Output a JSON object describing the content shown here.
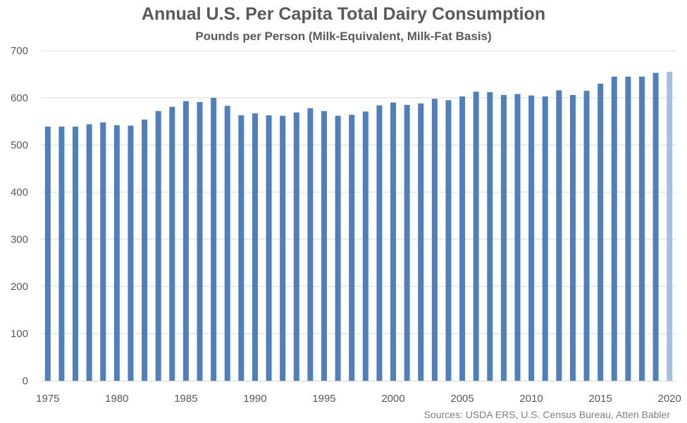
{
  "chart_data": {
    "type": "bar",
    "title": "Annual U.S. Per Capita Total Dairy Consumption",
    "subtitle": "Pounds per Person (Milk-Equivalent, Milk-Fat Basis)",
    "source": "Sources: USDA ERS, U.S. Census Bureau, Atten Babler",
    "xlabel": "",
    "ylabel": "",
    "ylim": [
      0,
      700
    ],
    "yticks": [
      0,
      100,
      200,
      300,
      400,
      500,
      600,
      700
    ],
    "xtick_labels": [
      "1975",
      "1980",
      "1985",
      "1990",
      "1995",
      "2000",
      "2005",
      "2010",
      "2015",
      "2020"
    ],
    "grid": true,
    "legend": "none",
    "colors": {
      "bar": "#4f7fbd",
      "bar_highlight": "#a6bfdf",
      "grid": "#d9d9d9",
      "axis_text": "#595959"
    },
    "categories": [
      "1975",
      "1976",
      "1977",
      "1978",
      "1979",
      "1980",
      "1981",
      "1982",
      "1983",
      "1984",
      "1985",
      "1986",
      "1987",
      "1988",
      "1989",
      "1990",
      "1991",
      "1992",
      "1993",
      "1994",
      "1995",
      "1996",
      "1997",
      "1998",
      "1999",
      "2000",
      "2001",
      "2002",
      "2003",
      "2004",
      "2005",
      "2006",
      "2007",
      "2008",
      "2009",
      "2010",
      "2011",
      "2012",
      "2013",
      "2014",
      "2015",
      "2016",
      "2017",
      "2018",
      "2019",
      "2020"
    ],
    "values": [
      539,
      539,
      539,
      544,
      548,
      542,
      541,
      554,
      572,
      581,
      593,
      591,
      600,
      583,
      563,
      567,
      563,
      562,
      569,
      578,
      572,
      562,
      564,
      571,
      584,
      590,
      585,
      588,
      598,
      595,
      603,
      613,
      612,
      606,
      608,
      605,
      603,
      616,
      606,
      615,
      630,
      645,
      645,
      645,
      653,
      655
    ],
    "highlight_index": 45
  }
}
